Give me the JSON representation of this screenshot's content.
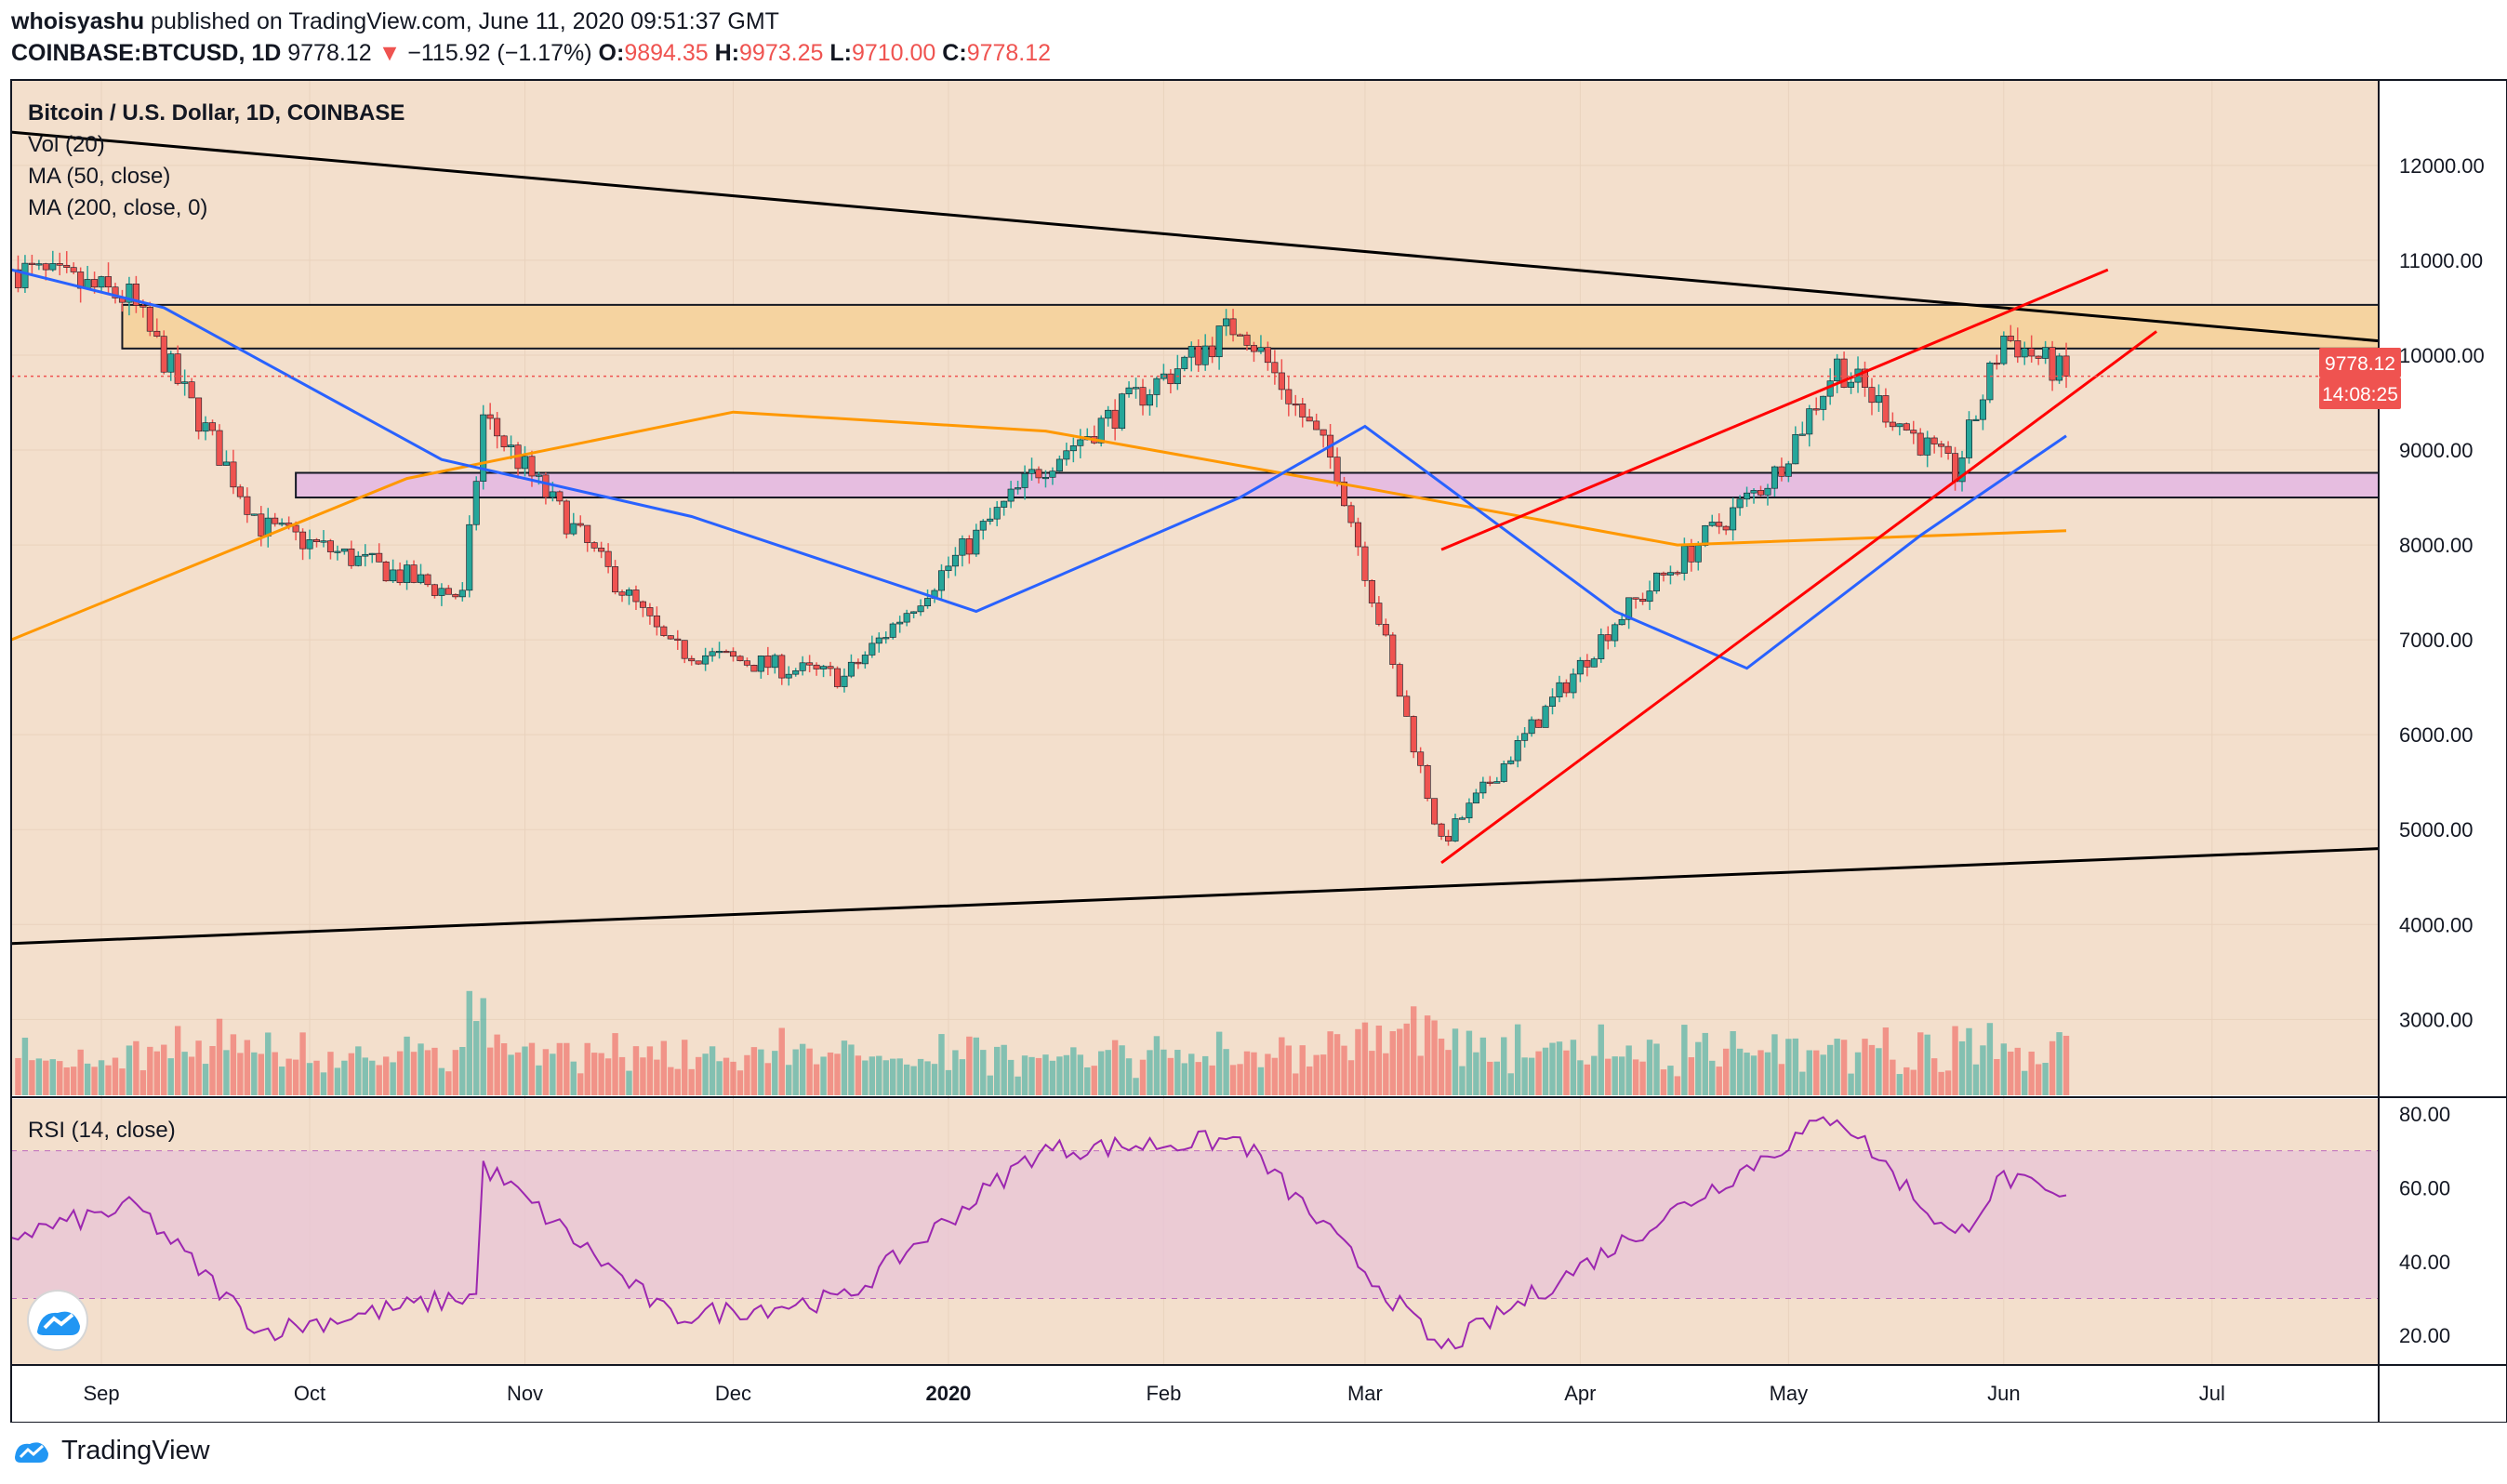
{
  "header": {
    "author": "whoisyashu",
    "published": "published on TradingView.com, June 11, 2020 09:51:37 GMT",
    "symbol": "COINBASE:BTCUSD, 1D",
    "last": "9778.12",
    "arrow": "▼",
    "change": "−115.92 (−1.17%)",
    "o_label": "O:",
    "o": "9894.35",
    "h_label": "H:",
    "h": "9973.25",
    "l_label": "L:",
    "l": "9710.00",
    "c_label": "C:",
    "c": "9778.12"
  },
  "legend": {
    "title": "Bitcoin / U.S. Dollar, 1D, COINBASE",
    "vol": "Vol (20)",
    "ma50": "MA (50, close)",
    "ma200": "MA (200, close, 0)",
    "rsi": "RSI (14, close)"
  },
  "price_badge": "9778.12",
  "countdown_badge": "14:08:25",
  "footer": {
    "brand": "TradingView"
  },
  "colors": {
    "background": "#f3dfcc",
    "up": "#26a69a",
    "down": "#ef5350",
    "ma50": "#2962ff",
    "ma200": "#ff9800",
    "trendline": "#000000",
    "wedge": "#ff0000",
    "resistance_zone": "#f5d3a0",
    "support_zone": "#e6bde0",
    "rsi_line": "#9c27b0",
    "rsi_band": "#e8c5d6"
  },
  "chart_data": {
    "type": "candlestick",
    "x_ticks": [
      "Sep",
      "Oct",
      "Nov",
      "Dec",
      "2020",
      "Feb",
      "Mar",
      "Apr",
      "May",
      "Jun",
      "Jul"
    ],
    "y_ticks": [
      "12000.00",
      "11000.00",
      "10000.00",
      "9000.00",
      "8000.00",
      "7000.00",
      "6000.00",
      "5000.00",
      "4000.00",
      "3000.00"
    ],
    "ylim": [
      2200,
      12900
    ],
    "rsi_ticks": [
      "80.00",
      "60.00",
      "40.00",
      "20.00"
    ],
    "rsi_ylim": [
      12,
      84
    ],
    "rsi_band": [
      30,
      70
    ],
    "x_range": [
      "2019-08-19",
      "2020-07-25"
    ],
    "last_close": 9778.12,
    "key_points": [
      {
        "date": "2019-08-20",
        "close": 10900
      },
      {
        "date": "2019-09-05",
        "close": 10600
      },
      {
        "date": "2019-09-24",
        "close": 8200
      },
      {
        "date": "2019-10-23",
        "close": 7450
      },
      {
        "date": "2019-10-26",
        "close": 9350
      },
      {
        "date": "2019-11-22",
        "close": 6900
      },
      {
        "date": "2019-12-17",
        "close": 6600
      },
      {
        "date": "2020-01-14",
        "close": 8800
      },
      {
        "date": "2020-02-12",
        "close": 10350
      },
      {
        "date": "2020-02-26",
        "close": 8800
      },
      {
        "date": "2020-03-12",
        "close": 4850
      },
      {
        "date": "2020-04-06",
        "close": 7200
      },
      {
        "date": "2020-04-29",
        "close": 8750
      },
      {
        "date": "2020-05-08",
        "close": 9900
      },
      {
        "date": "2020-05-25",
        "close": 8750
      },
      {
        "date": "2020-06-01",
        "close": 10200
      },
      {
        "date": "2020-06-10",
        "close": 9778.12
      }
    ],
    "ma50": [
      {
        "date": "2019-08-19",
        "value": 10900
      },
      {
        "date": "2019-09-10",
        "value": 10500
      },
      {
        "date": "2019-10-20",
        "value": 8900
      },
      {
        "date": "2019-11-25",
        "value": 8300
      },
      {
        "date": "2020-01-05",
        "value": 7300
      },
      {
        "date": "2020-02-12",
        "value": 8500
      },
      {
        "date": "2020-03-01",
        "value": 9250
      },
      {
        "date": "2020-04-06",
        "value": 7300
      },
      {
        "date": "2020-04-25",
        "value": 6700
      },
      {
        "date": "2020-05-20",
        "value": 8100
      },
      {
        "date": "2020-06-10",
        "value": 9150
      }
    ],
    "ma200": [
      {
        "date": "2019-08-19",
        "value": 7000
      },
      {
        "date": "2019-10-15",
        "value": 8700
      },
      {
        "date": "2019-12-01",
        "value": 9400
      },
      {
        "date": "2020-01-15",
        "value": 9200
      },
      {
        "date": "2020-03-01",
        "value": 8600
      },
      {
        "date": "2020-04-15",
        "value": 8000
      },
      {
        "date": "2020-06-10",
        "value": 8150
      }
    ],
    "rsi": [
      {
        "date": "2019-08-19",
        "value": 47
      },
      {
        "date": "2019-09-06",
        "value": 55
      },
      {
        "date": "2019-09-24",
        "value": 21
      },
      {
        "date": "2019-10-25",
        "value": 31
      },
      {
        "date": "2019-10-26",
        "value": 66
      },
      {
        "date": "2019-11-22",
        "value": 25
      },
      {
        "date": "2019-12-17",
        "value": 30
      },
      {
        "date": "2020-01-14",
        "value": 70
      },
      {
        "date": "2020-02-12",
        "value": 73
      },
      {
        "date": "2020-03-12",
        "value": 16
      },
      {
        "date": "2020-04-29",
        "value": 70
      },
      {
        "date": "2020-05-08",
        "value": 80
      },
      {
        "date": "2020-05-25",
        "value": 46
      },
      {
        "date": "2020-06-01",
        "value": 63
      },
      {
        "date": "2020-06-10",
        "value": 56
      }
    ],
    "lines": [
      {
        "name": "upper-trendline",
        "from": {
          "date": "2019-08-19",
          "value": 12350
        },
        "to": {
          "date": "2020-07-25",
          "value": 10150
        }
      },
      {
        "name": "lower-trendline",
        "from": {
          "date": "2019-08-19",
          "value": 3800
        },
        "to": {
          "date": "2020-07-25",
          "value": 4800
        }
      },
      {
        "name": "wedge-upper",
        "from": {
          "date": "2020-03-12",
          "value": 7950
        },
        "to": {
          "date": "2020-06-16",
          "value": 10900
        }
      },
      {
        "name": "wedge-lower",
        "from": {
          "date": "2020-03-12",
          "value": 4650
        },
        "to": {
          "date": "2020-06-23",
          "value": 10250
        }
      }
    ],
    "zones": [
      {
        "name": "resistance-zone",
        "from_date": "2019-09-04",
        "low": 10070,
        "high": 10530
      },
      {
        "name": "support-zone",
        "from_date": "2019-09-29",
        "low": 8500,
        "high": 8760
      }
    ]
  }
}
